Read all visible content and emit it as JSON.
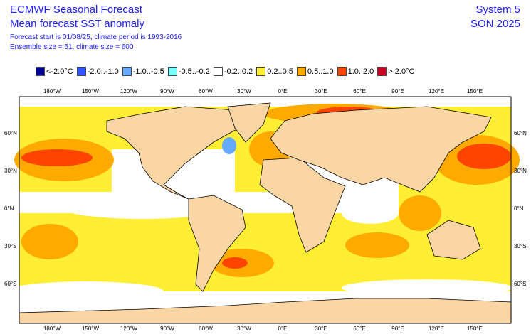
{
  "header": {
    "title": "ECMWF Seasonal Forecast",
    "subtitle": "Mean forecast SST anomaly",
    "line3": "Forecast start is 01/08/25, climate period is 1993-2016",
    "line4": "Ensemble size = 51, climate size = 600",
    "system": "System 5",
    "period": "SON 2025"
  },
  "legend": [
    {
      "label": "<-2.0°C",
      "color": "#000099"
    },
    {
      "label": "-2.0..-1.0",
      "color": "#3355ff"
    },
    {
      "label": "-1.0..-0.5",
      "color": "#66aaff"
    },
    {
      "label": "-0.5..-0.2",
      "color": "#77ffff"
    },
    {
      "label": "-0.2..0.2",
      "color": "#ffffff"
    },
    {
      "label": "0.2..0.5",
      "color": "#ffee33"
    },
    {
      "label": "0.5..1.0",
      "color": "#ffaa00"
    },
    {
      "label": "1.0..2.0",
      "color": "#ff4400"
    },
    {
      "label": "> 2.0°C",
      "color": "#cc0022"
    }
  ],
  "lon_labels": [
    "180°W",
    "150°W",
    "120°W",
    "90°W",
    "60°W",
    "30°W",
    "0°E",
    "30°E",
    "60°E",
    "90°E",
    "120°E",
    "150°E"
  ],
  "lat_labels": [
    "60°N",
    "30°N",
    "0°N",
    "30°S",
    "60°S"
  ],
  "land_color": "#fad6a5"
}
